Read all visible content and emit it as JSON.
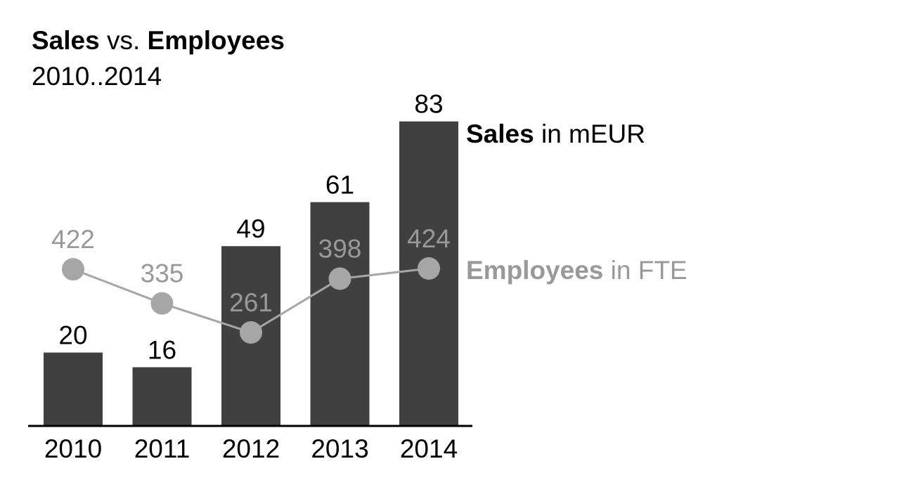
{
  "chart_data": {
    "type": "bar",
    "title": {
      "part1": "Sales",
      "part2": " vs. ",
      "part3": "Employees"
    },
    "subtitle": "2010..2014",
    "categories": [
      "2010",
      "2011",
      "2012",
      "2013",
      "2014"
    ],
    "series": [
      {
        "name": "Sales",
        "unit": " in mEUR",
        "type": "bar",
        "color": "#404040",
        "values": [
          20,
          16,
          49,
          61,
          83
        ]
      },
      {
        "name": "Employees",
        "unit": " in FTE",
        "type": "line",
        "color": "#a6a6a6",
        "label_color": "#999999",
        "values": [
          422,
          335,
          261,
          398,
          424
        ]
      }
    ],
    "grid": false,
    "legend": "right"
  }
}
